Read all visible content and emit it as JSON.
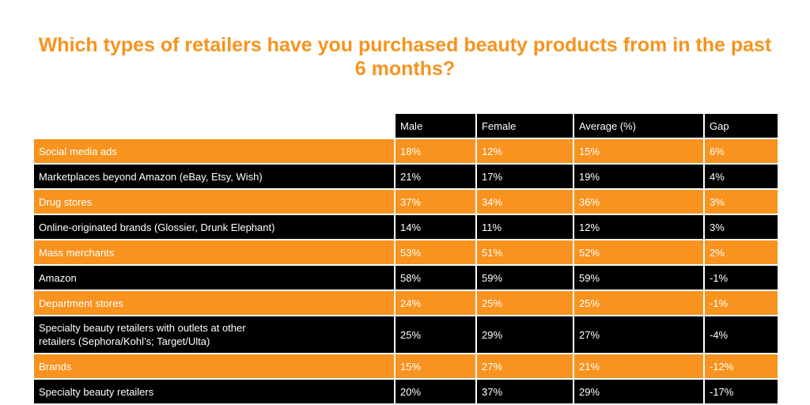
{
  "header": {
    "title": "Which types of retailers have you purchased beauty products from in the past 6 months?"
  },
  "table": {
    "columns": [
      "Male",
      "Female",
      "Average (%)",
      "Gap"
    ],
    "rows": [
      {
        "label": "Social media ads",
        "values": [
          "18%",
          "12%",
          "15%",
          "6%"
        ]
      },
      {
        "label": "Marketplaces beyond Amazon (eBay, Etsy, Wish)",
        "values": [
          "21%",
          "17%",
          "19%",
          "4%"
        ]
      },
      {
        "label": "Drug stores",
        "values": [
          "37%",
          "34%",
          "36%",
          "3%"
        ]
      },
      {
        "label": "Online-originated brands (Glossier, Drunk Elephant)",
        "values": [
          "14%",
          "11%",
          "12%",
          "3%"
        ]
      },
      {
        "label": "Mass merchants",
        "values": [
          "53%",
          "51%",
          "52%",
          "2%"
        ]
      },
      {
        "label": "Amazon",
        "values": [
          "58%",
          "59%",
          "59%",
          "-1%"
        ]
      },
      {
        "label": "Department stores",
        "values": [
          "24%",
          "25%",
          "25%",
          "-1%"
        ]
      },
      {
        "label": "Specialty beauty retailers with outlets at other retailers (Sephora/Kohl’s; Target/Ulta)",
        "values": [
          "25%",
          "29%",
          "27%",
          "-4%"
        ]
      },
      {
        "label": "Brands",
        "values": [
          "15%",
          "27%",
          "21%",
          "-12%"
        ]
      },
      {
        "label": "Specialty beauty retailers",
        "values": [
          "20%",
          "37%",
          "29%",
          "-17%"
        ]
      }
    ]
  }
}
